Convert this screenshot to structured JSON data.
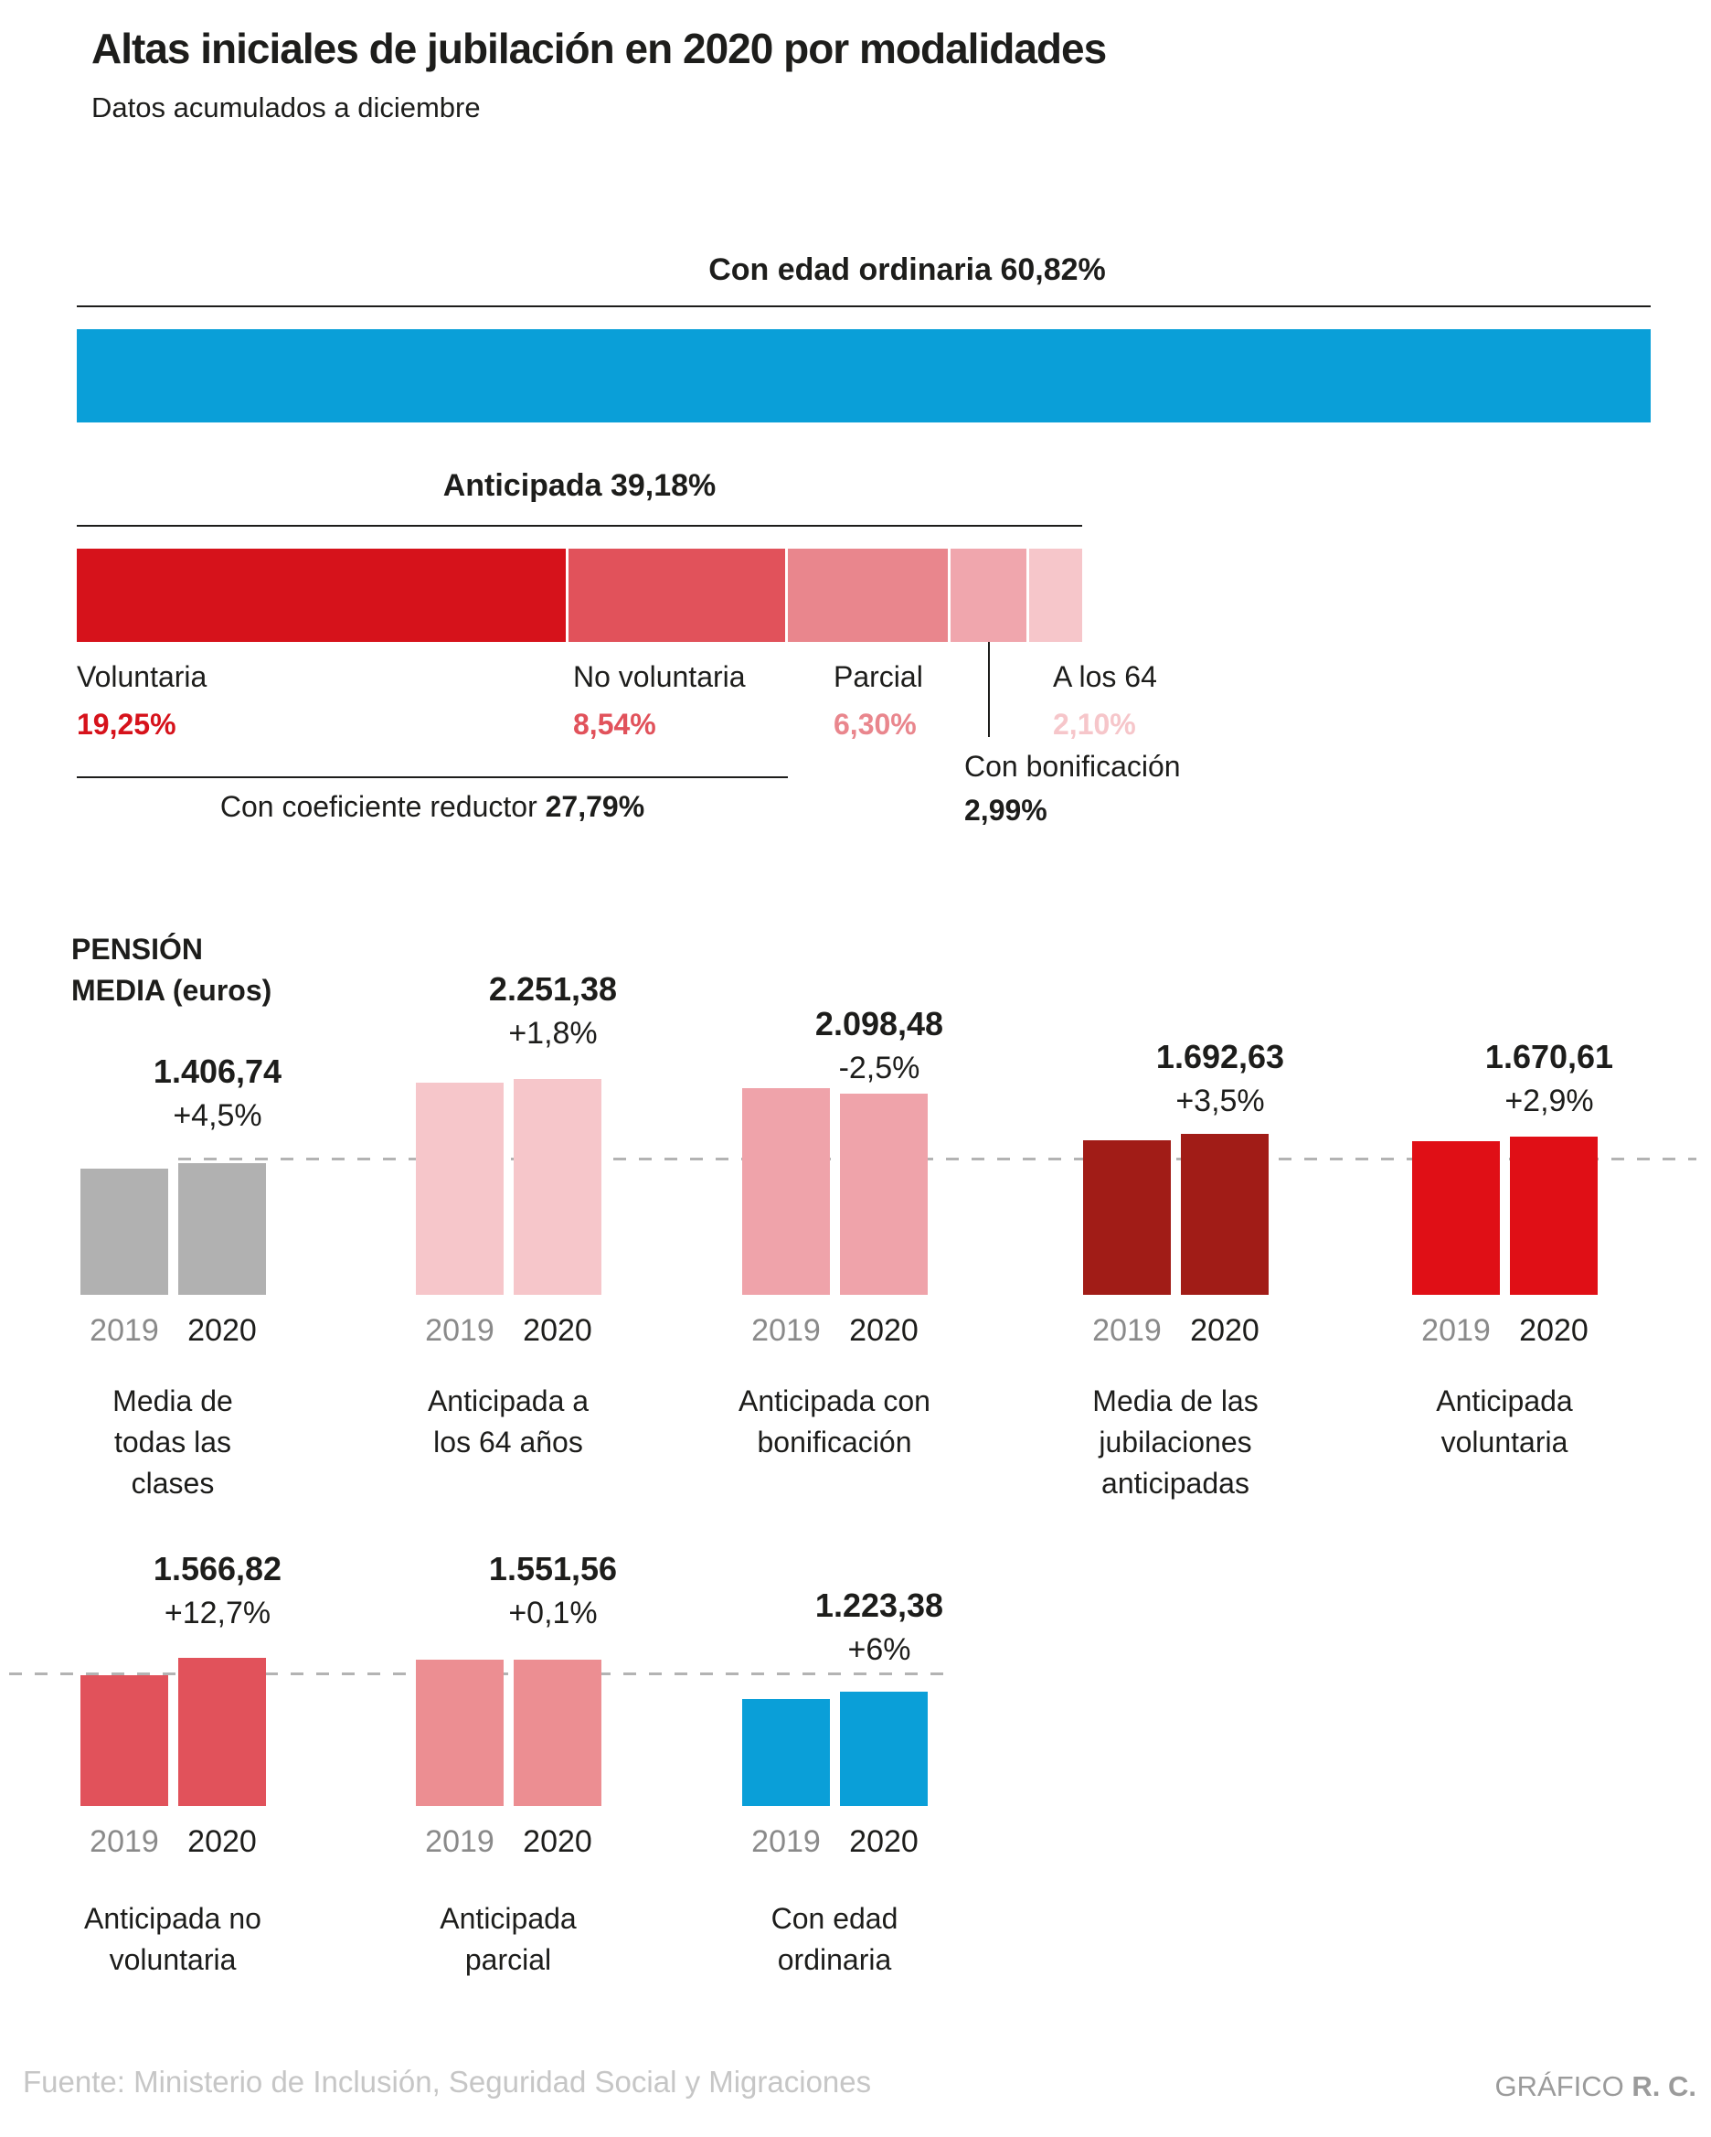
{
  "header": {
    "title": "Altas iniciales de jubilación en 2020 por modalidades",
    "subtitle": "Datos acumulados a diciembre"
  },
  "footer": {
    "source": "Fuente: Ministerio de Inclusión, Seguridad Social y Migraciones",
    "credit_prefix": "GRÁFICO",
    "credit_author": "R. C."
  },
  "colors": {
    "blue": "#0a9fd8",
    "voluntaria_red": "#d6121b",
    "no_voluntaria_red": "#e1525b",
    "parcial_pink": "#e9868d",
    "bonificacion_pink": "#f0a6ad",
    "a_los_64_pink": "#f6c6ca",
    "gray_bar": "#b1b1b1",
    "dark_maroon": "#a11c17",
    "bright_red": "#e00f16",
    "parcial_bar_pink": "#ec8e92",
    "dashed_line": "#b3b3b3",
    "text_black": "#1d1d1b",
    "text_gray_year": "#8a8a8a",
    "source_gray": "#c6c6c6",
    "credit_gray": "#9b9b9b"
  },
  "chart_data": [
    {
      "type": "bar",
      "subtype": "stacked-percentage-breakdown",
      "title": "Altas iniciales de jubilación en 2020 por modalidades",
      "unit": "%",
      "series": [
        {
          "key": "con-edad-ordinaria",
          "name": "Con edad ordinaria",
          "pct": 60.82,
          "pct_label": "60,82%",
          "color": "#0a9fd8"
        },
        {
          "key": "anticipada",
          "name": "Anticipada",
          "pct": 39.18,
          "pct_label": "39,18%",
          "segments": [
            {
              "key": "voluntaria",
              "name": "Voluntaria",
              "pct": 19.25,
              "pct_label": "19,25%",
              "color": "#d6121b"
            },
            {
              "key": "no-voluntaria",
              "name": "No voluntaria",
              "pct": 8.54,
              "pct_label": "8,54%",
              "color": "#e1525b"
            },
            {
              "key": "parcial",
              "name": "Parcial",
              "pct": 6.3,
              "pct_label": "6,30%",
              "color": "#e9868d"
            },
            {
              "key": "con-bonificacion",
              "name": "Con bonificación",
              "pct": 2.99,
              "pct_label": "2,99%",
              "color": "#f0a6ad",
              "callout": true
            },
            {
              "key": "a-los-64",
              "name": "A los 64",
              "pct": 2.1,
              "pct_label": "2,10%",
              "color": "#f6c6ca"
            }
          ],
          "annotation": {
            "label": "Con coeficiente reductor",
            "pct": 27.79,
            "pct_label": "27,79%",
            "covers_segments": [
              "voluntaria",
              "no-voluntaria"
            ]
          }
        }
      ]
    },
    {
      "type": "bar",
      "subtype": "grouped-pairs",
      "title": "PENSIÓN\nMEDIA (euros)",
      "years": [
        "2019",
        "2020"
      ],
      "reference_line_value": 1406.74,
      "groups": [
        {
          "key": "media-todas-clases",
          "category": "Media de\ntodas las\nclases",
          "value_2020": 1406.74,
          "value_label": "1.406,74",
          "change_pct": 4.5,
          "change_label": "+4,5%",
          "value_2019_est": 1346.16,
          "color": "#b1b1b1",
          "row": 1
        },
        {
          "key": "anticipada-64",
          "category": "Anticipada a\nlos 64 años",
          "value_2020": 2251.38,
          "value_label": "2.251,38",
          "change_pct": 1.8,
          "change_label": "+1,8%",
          "value_2019_est": 2211.57,
          "color": "#f6c6ca",
          "row": 1
        },
        {
          "key": "anticipada-bonificacion",
          "category": "Anticipada con\nbonificación",
          "value_2020": 2098.48,
          "value_label": "2.098,48",
          "change_pct": -2.5,
          "change_label": "-2,5%",
          "value_2019_est": 2152.29,
          "color": "#efa3aa",
          "row": 1
        },
        {
          "key": "media-anticipadas",
          "category": "Media de las\njubilaciones\nanticipadas",
          "value_2020": 1692.63,
          "value_label": "1.692,63",
          "change_pct": 3.5,
          "change_label": "+3,5%",
          "value_2019_est": 1635.39,
          "color": "#a11c17",
          "row": 1
        },
        {
          "key": "anticipada-voluntaria",
          "category": "Anticipada\nvoluntaria",
          "value_2020": 1670.61,
          "value_label": "1.670,61",
          "change_pct": 2.9,
          "change_label": "+2,9%",
          "value_2019_est": 1623.53,
          "color": "#e00f16",
          "row": 1
        },
        {
          "key": "anticipada-no-voluntaria",
          "category": "Anticipada no\nvoluntaria",
          "value_2020": 1566.82,
          "value_label": "1.566,82",
          "change_pct": 12.7,
          "change_label": "+12,7%",
          "value_2019_est": 1390.26,
          "color": "#e1525b",
          "row": 2
        },
        {
          "key": "anticipada-parcial",
          "category": "Anticipada\nparcial",
          "value_2020": 1551.56,
          "value_label": "1.551,56",
          "change_pct": 0.1,
          "change_label": "+0,1%",
          "value_2019_est": 1550.01,
          "color": "#ec8e92",
          "row": 2
        },
        {
          "key": "edad-ordinaria",
          "category": "Con edad\nordinaria",
          "value_2020": 1223.38,
          "value_label": "1.223,38",
          "change_pct": 6.0,
          "change_label": "+6%",
          "value_2019_est": 1154.13,
          "color": "#0a9fd8",
          "row": 2
        }
      ]
    }
  ]
}
